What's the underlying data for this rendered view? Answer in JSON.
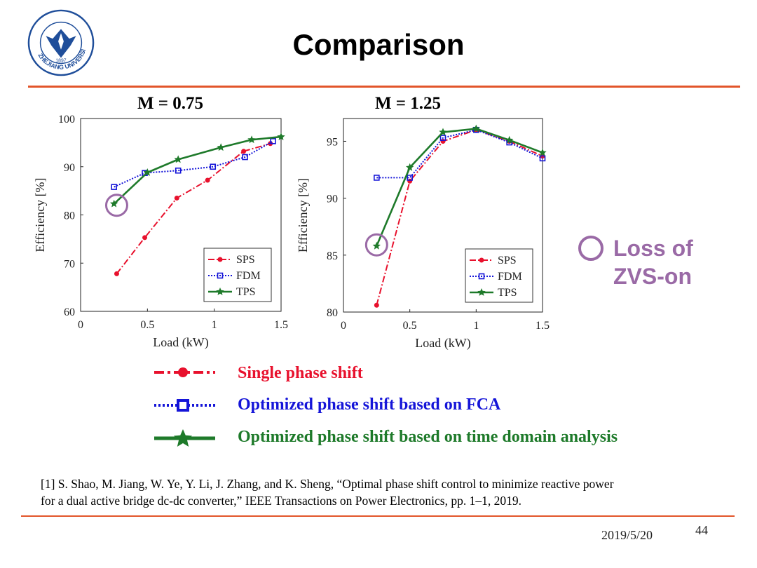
{
  "slide": {
    "title": "Comparison",
    "logo": {
      "text": "ZHEJIANG UNIVERSITY",
      "year": "1897"
    },
    "date": "2019/5/20",
    "page_number": "44"
  },
  "annotation": {
    "line1": "Loss of",
    "line2": "ZVS-on",
    "color": "#9a6aa6"
  },
  "legend": [
    {
      "label": "Single phase shift",
      "color": "#e8112d",
      "marker": "circle"
    },
    {
      "label": "Optimized phase shift based on FCA",
      "color": "#1515d8",
      "marker": "square"
    },
    {
      "label": "Optimized phase shift based on time domain analysis",
      "color": "#1e7a2a",
      "marker": "star"
    }
  ],
  "reference": {
    "line1": "[1] S. Shao, M. Jiang, W. Ye, Y. Li, J. Zhang, and K. Sheng, “Optimal phase shift control to minimize reactive power",
    "line2": "for a dual active bridge dc-dc converter,” IEEE Transactions on Power Electronics, pp. 1–1, 2019."
  },
  "chart_data": [
    {
      "type": "line",
      "title": "M = 0.75",
      "xlabel": "Load (kW)",
      "ylabel": "Efficiency [%]",
      "xlim": [
        0,
        1.5
      ],
      "ylim": [
        60,
        100
      ],
      "xticks": [
        "0",
        "0.5",
        "1",
        "1.5"
      ],
      "yticks": [
        "60",
        "70",
        "80",
        "90",
        "100"
      ],
      "legend_position": "bottom-right",
      "series": [
        {
          "name": "SPS",
          "color": "#e8112d",
          "marker": "circle",
          "x": [
            0.27,
            0.48,
            0.72,
            0.95,
            1.22,
            1.42
          ],
          "y": [
            67.8,
            75.3,
            83.5,
            87.2,
            93.2,
            94.8
          ]
        },
        {
          "name": "FDM",
          "color": "#1515d8",
          "marker": "square",
          "x": [
            0.25,
            0.48,
            0.73,
            0.99,
            1.23,
            1.44
          ],
          "y": [
            85.8,
            88.7,
            89.2,
            90.0,
            92.0,
            95.3
          ]
        },
        {
          "name": "TPS",
          "color": "#1e7a2a",
          "marker": "star",
          "x": [
            0.25,
            0.5,
            0.73,
            1.05,
            1.28,
            1.5
          ],
          "y": [
            82.3,
            88.8,
            91.5,
            94.0,
            95.6,
            96.2
          ]
        }
      ],
      "annotation_circle": {
        "x": 0.27,
        "y": 82.0
      }
    },
    {
      "type": "line",
      "title": "M = 1.25",
      "xlabel": "Load (kW)",
      "ylabel": "Efficiency [%]",
      "xlim": [
        0,
        1.5
      ],
      "ylim": [
        80,
        97
      ],
      "xticks": [
        "0",
        "0.5",
        "1",
        "1.5"
      ],
      "yticks": [
        "80",
        "85",
        "90",
        "95"
      ],
      "legend_position": "bottom-right",
      "series": [
        {
          "name": "SPS",
          "color": "#e8112d",
          "marker": "circle",
          "x": [
            0.25,
            0.5,
            0.75,
            1.0,
            1.25,
            1.5
          ],
          "y": [
            80.6,
            91.5,
            95.0,
            96.0,
            95.0,
            93.7
          ]
        },
        {
          "name": "FDM",
          "color": "#1515d8",
          "marker": "square",
          "x": [
            0.25,
            0.5,
            0.75,
            1.0,
            1.25,
            1.5
          ],
          "y": [
            91.8,
            91.8,
            95.3,
            96.0,
            94.9,
            93.5
          ]
        },
        {
          "name": "TPS",
          "color": "#1e7a2a",
          "marker": "star",
          "x": [
            0.25,
            0.5,
            0.75,
            1.0,
            1.25,
            1.5
          ],
          "y": [
            85.8,
            92.7,
            95.8,
            96.1,
            95.1,
            94.0
          ]
        }
      ],
      "annotation_circle": {
        "x": 0.25,
        "y": 85.9
      }
    }
  ]
}
